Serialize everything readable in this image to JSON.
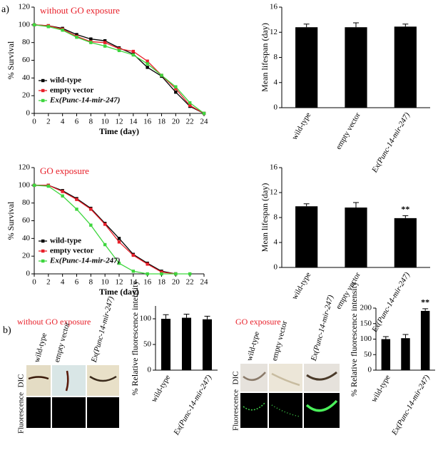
{
  "panel_labels": {
    "a": "a)",
    "b": "b)"
  },
  "panel_b": {
    "left": {
      "title": "without GO exposure",
      "columns": [
        "wild-type",
        "empty vector",
        "Ex(Punc-14-mir-247)"
      ],
      "rows": [
        "DIC",
        "Fluorescence"
      ]
    },
    "right": {
      "title": "GO exposure",
      "columns": [
        "wild-type",
        "empty vector",
        "Ex(Punc-14-mir-247)"
      ],
      "rows": [
        "DIC",
        "Fluorescence"
      ]
    }
  },
  "chart_data": [
    {
      "type": "line",
      "title": "without GO exposure",
      "title_color": "#e8202a",
      "x_label": "Time (day)",
      "y_label": "% Survival",
      "x": [
        0,
        2,
        4,
        6,
        8,
        10,
        12,
        14,
        16,
        18,
        20,
        22,
        24
      ],
      "series": [
        {
          "name": "wild-type",
          "color": "#000000",
          "values": [
            100,
            99,
            96,
            89,
            84,
            82,
            74,
            67,
            52,
            42,
            24,
            8,
            0
          ]
        },
        {
          "name": "empty vector",
          "color": "#e8202a",
          "values": [
            100,
            99,
            95,
            87,
            81,
            80,
            73,
            70,
            59,
            43,
            28,
            9,
            0
          ]
        },
        {
          "name": "Ex(Punc-14-mir-247)",
          "color": "#3ed63e",
          "values": [
            100,
            98,
            94,
            86,
            80,
            76,
            71,
            66,
            56,
            43,
            30,
            12,
            0
          ]
        }
      ],
      "xlim": [
        0,
        24
      ],
      "xticks": [
        0,
        2,
        4,
        6,
        8,
        10,
        12,
        14,
        16,
        18,
        20,
        22,
        24
      ],
      "ylim": [
        0,
        120
      ],
      "yticks": [
        0,
        20,
        40,
        60,
        80,
        100,
        120
      ],
      "legend": "lower left"
    },
    {
      "type": "bar",
      "y_label": "Mean lifespan (day)",
      "categories": [
        "wild-type",
        "empty vector",
        "Ex(Punc-14-mir-247)"
      ],
      "values": [
        12.8,
        12.8,
        12.9
      ],
      "errors": [
        0.5,
        0.7,
        0.4
      ],
      "color": "#000000",
      "ylim": [
        0,
        16
      ],
      "yticks": [
        0,
        4,
        8,
        12,
        16
      ]
    },
    {
      "type": "line",
      "title": "GO exposure",
      "title_color": "#e8202a",
      "x_label": "Time (day)",
      "y_label": "% Survival",
      "x": [
        0,
        2,
        4,
        6,
        8,
        10,
        12,
        14,
        16,
        18,
        20,
        22
      ],
      "series": [
        {
          "name": "wild-type",
          "color": "#000000",
          "values": [
            100,
            100,
            94,
            85,
            74,
            57,
            40,
            22,
            12,
            3,
            0,
            null
          ]
        },
        {
          "name": "empty vector",
          "color": "#e8202a",
          "values": [
            100,
            100,
            93,
            84,
            73,
            56,
            36,
            21,
            11,
            2,
            0,
            null
          ]
        },
        {
          "name": "Ex(Punc-14-mir-247)",
          "color": "#3ed63e",
          "values": [
            100,
            99,
            88,
            73,
            55,
            33,
            12,
            3,
            0,
            0,
            0,
            0
          ]
        }
      ],
      "xlim": [
        0,
        24
      ],
      "xticks": [
        0,
        2,
        4,
        6,
        8,
        10,
        12,
        14,
        16,
        18,
        20,
        22,
        24
      ],
      "ylim": [
        0,
        120
      ],
      "yticks": [
        0,
        20,
        40,
        60,
        80,
        100,
        120
      ],
      "legend": "lower left"
    },
    {
      "type": "bar",
      "y_label": "Mean lifespan (day)",
      "categories": [
        "wild-type",
        "empty vector",
        "Ex(Punc-14-mir-247)"
      ],
      "values": [
        9.8,
        9.6,
        7.9
      ],
      "errors": [
        0.4,
        0.8,
        0.4
      ],
      "value_annotations": [
        null,
        null,
        "**"
      ],
      "color": "#000000",
      "ylim": [
        0,
        16
      ],
      "yticks": [
        0,
        4,
        8,
        12,
        16
      ]
    },
    {
      "type": "bar",
      "y_label": "% Relative fluorescence intensity",
      "categories": [
        "wild-type",
        null,
        "Ex(Punc-14-mir-247)"
      ],
      "values": [
        100,
        102,
        99
      ],
      "errors": [
        8,
        7,
        6
      ],
      "color": "#000000",
      "ylim": [
        0,
        125
      ],
      "yticks": [
        0,
        50,
        100
      ]
    },
    {
      "type": "bar",
      "y_label": "% Relative fluorescence intensity",
      "categories": [
        "wild-type",
        null,
        "Ex(Punc-14-mir-247)"
      ],
      "values": [
        100,
        103,
        191
      ],
      "errors": [
        8,
        12,
        7
      ],
      "value_annotations": [
        null,
        null,
        "**"
      ],
      "color": "#000000",
      "ylim": [
        0,
        200
      ],
      "yticks": [
        0,
        50,
        100,
        150,
        200
      ]
    }
  ]
}
